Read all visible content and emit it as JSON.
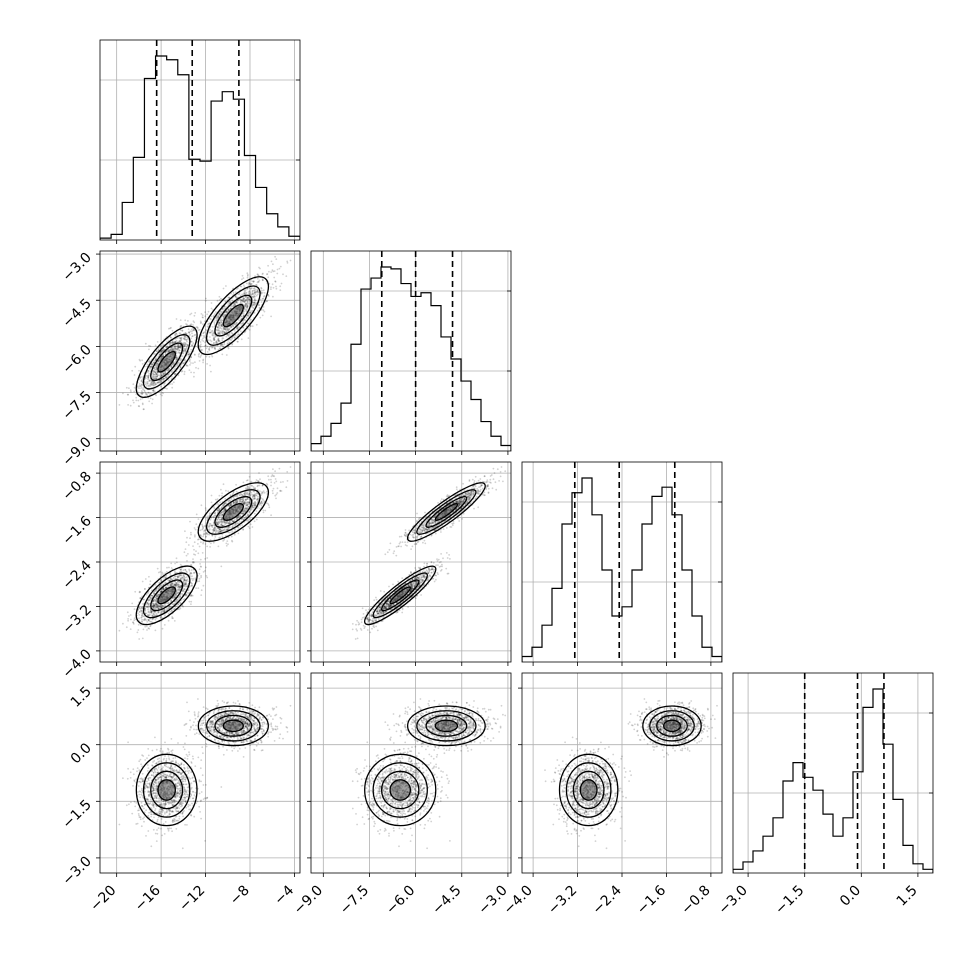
{
  "chart_data": {
    "type": "corner",
    "parameters": 4,
    "grid": true,
    "axes": [
      {
        "index": 0,
        "range": [
          -21.5,
          -3.5
        ],
        "ticks": [
          -20,
          -16,
          -12,
          -8,
          -4
        ],
        "tick_labels": [
          "−20",
          "−16",
          "−12",
          "−8",
          "−4"
        ]
      },
      {
        "index": 1,
        "range": [
          -9.4,
          -2.9
        ],
        "ticks": [
          -9.0,
          -7.5,
          -6.0,
          -4.5,
          -3.0
        ],
        "tick_labels": [
          "−9.0",
          "−7.5",
          "−6.0",
          "−4.5",
          "−3.0"
        ]
      },
      {
        "index": 2,
        "range": [
          -4.2,
          -0.6
        ],
        "ticks": [
          -4.0,
          -3.2,
          -2.4,
          -1.6,
          -0.8
        ],
        "tick_labels": [
          "−4.0",
          "−3.2",
          "−2.4",
          "−1.6",
          "−0.8"
        ]
      },
      {
        "index": 3,
        "range": [
          -3.4,
          1.9
        ],
        "ticks": [
          -3.0,
          -1.5,
          0.0,
          1.5
        ],
        "tick_labels": [
          "−3.0",
          "−1.5",
          "0.0",
          "1.5"
        ]
      }
    ],
    "histograms": [
      {
        "param": 0,
        "bins": 18,
        "counts": [
          1,
          3,
          20,
          44,
          86,
          98,
          96,
          88,
          43,
          42,
          74,
          79,
          75,
          45,
          28,
          14,
          7,
          2
        ],
        "quantiles": [
          -16.4,
          -13.2,
          -9.0
        ]
      },
      {
        "param": 1,
        "bins": 20,
        "counts": [
          4,
          8,
          15,
          26,
          58,
          88,
          94,
          100,
          99,
          91,
          84,
          86,
          79,
          62,
          50,
          38,
          28,
          16,
          8,
          3
        ],
        "quantiles": [
          -7.1,
          -6.0,
          -4.8
        ]
      },
      {
        "param": 2,
        "bins": 20,
        "counts": [
          3,
          8,
          20,
          40,
          75,
          92,
          100,
          80,
          50,
          25,
          30,
          50,
          75,
          90,
          95,
          80,
          50,
          25,
          8,
          3
        ],
        "quantiles": [
          -3.25,
          -2.45,
          -1.45
        ]
      },
      {
        "param": 3,
        "bins": 20,
        "counts": [
          2,
          6,
          12,
          20,
          30,
          50,
          60,
          52,
          45,
          32,
          20,
          30,
          55,
          90,
          100,
          70,
          40,
          15,
          5,
          2
        ],
        "quantiles": [
          -1.5,
          -0.1,
          0.6
        ]
      }
    ],
    "modes": [
      {
        "weight": 0.5,
        "mean": [
          -15.5,
          -6.5,
          -3.0,
          -1.2
        ],
        "std": [
          1.3,
          0.55,
          0.25,
          0.45
        ]
      },
      {
        "weight": 0.5,
        "mean": [
          -9.5,
          -5.0,
          -1.5,
          0.5
        ],
        "std": [
          1.5,
          0.6,
          0.25,
          0.25
        ]
      }
    ],
    "correlations": {
      "0-1": 0.75,
      "1-2": 0.9
    }
  }
}
